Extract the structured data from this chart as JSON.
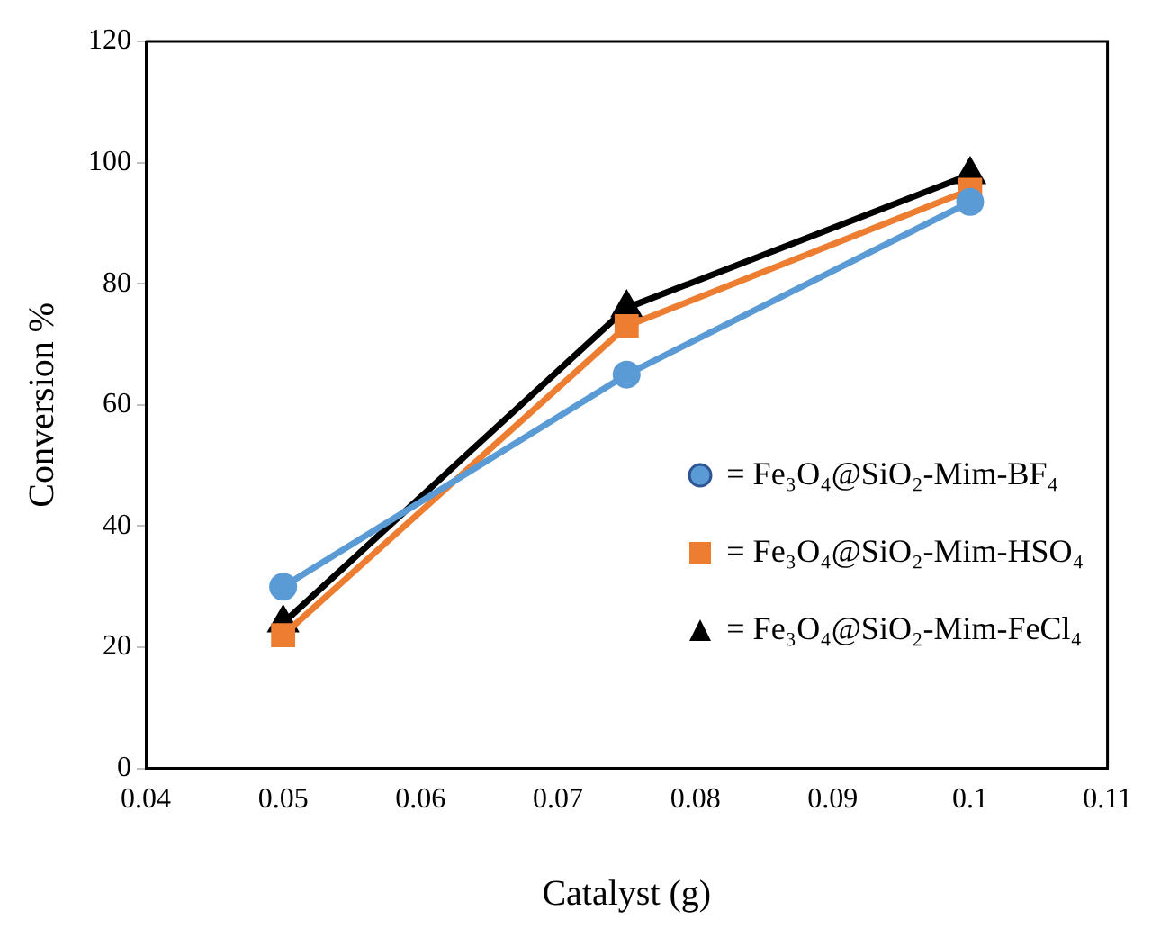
{
  "chart_data": {
    "type": "line",
    "xlabel": "Catalyst (g)",
    "ylabel": "Conversion %",
    "x": [
      0.05,
      0.075,
      0.1
    ],
    "series": [
      {
        "name": "= Fe₃O₄@SiO₂-Mim-BF₄",
        "color": "#5b9bd5",
        "marker": "circle",
        "values": [
          30,
          65,
          93.5
        ]
      },
      {
        "name": "= Fe₃O₄@SiO₂-Mim-HSO₄",
        "color": "#ed7d31",
        "marker": "square",
        "values": [
          22,
          73,
          95.5
        ]
      },
      {
        "name": "= Fe₃O₄@SiO₂-Mim-FeCl₄",
        "color": "#000000",
        "marker": "triangle",
        "values": [
          24,
          76,
          98
        ]
      }
    ],
    "xlim": [
      0.04,
      0.11
    ],
    "xticks": [
      0.04,
      0.05,
      0.06,
      0.07,
      0.08,
      0.09,
      0.1,
      0.11
    ],
    "ylim": [
      0,
      120
    ],
    "yticks": [
      0,
      20,
      40,
      60,
      80,
      100,
      120
    ],
    "grid": false,
    "legend": "right"
  }
}
